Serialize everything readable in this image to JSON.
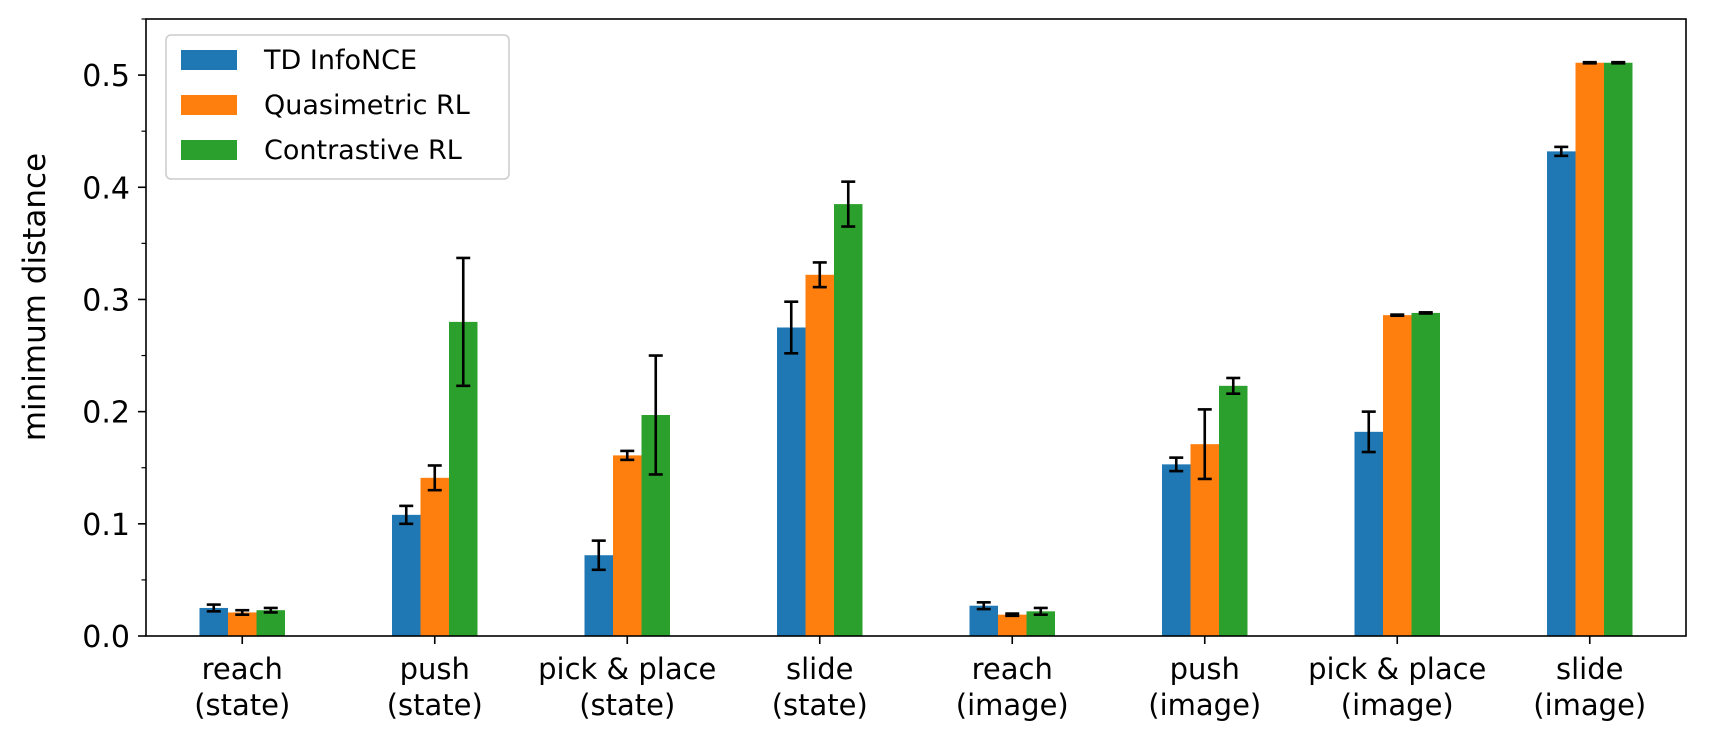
{
  "chart_data": {
    "type": "bar",
    "ylabel": "minimum distance",
    "xlabel": "",
    "ylim": [
      0,
      0.55
    ],
    "yticks": [
      "0.0",
      "0.1",
      "0.2",
      "0.3",
      "0.4",
      "0.5"
    ],
    "grid": false,
    "legend_position": "top-left",
    "categories": [
      [
        "reach",
        "(state)"
      ],
      [
        "push",
        "(state)"
      ],
      [
        "pick & place",
        "(state)"
      ],
      [
        "slide",
        "(state)"
      ],
      [
        "reach",
        "(image)"
      ],
      [
        "push",
        "(image)"
      ],
      [
        "pick & place",
        "(image)"
      ],
      [
        "slide",
        "(image)"
      ]
    ],
    "series": [
      {
        "name": "TD InfoNCE",
        "color": "#1f77b4",
        "values": [
          0.025,
          0.108,
          0.072,
          0.275,
          0.027,
          0.153,
          0.182,
          0.432
        ],
        "errors": [
          0.003,
          0.008,
          0.013,
          0.023,
          0.003,
          0.006,
          0.018,
          0.004
        ]
      },
      {
        "name": "Quasimetric RL",
        "color": "#ff7f0e",
        "values": [
          0.021,
          0.141,
          0.161,
          0.322,
          0.019,
          0.171,
          0.286,
          0.511
        ],
        "errors": [
          0.002,
          0.011,
          0.004,
          0.011,
          0.001,
          0.031,
          0.0005,
          0.0005
        ]
      },
      {
        "name": "Contrastive RL",
        "color": "#2ca02c",
        "values": [
          0.023,
          0.28,
          0.197,
          0.385,
          0.022,
          0.223,
          0.288,
          0.511
        ],
        "errors": [
          0.002,
          0.057,
          0.053,
          0.02,
          0.003,
          0.007,
          0.0005,
          0.0005
        ]
      }
    ]
  }
}
